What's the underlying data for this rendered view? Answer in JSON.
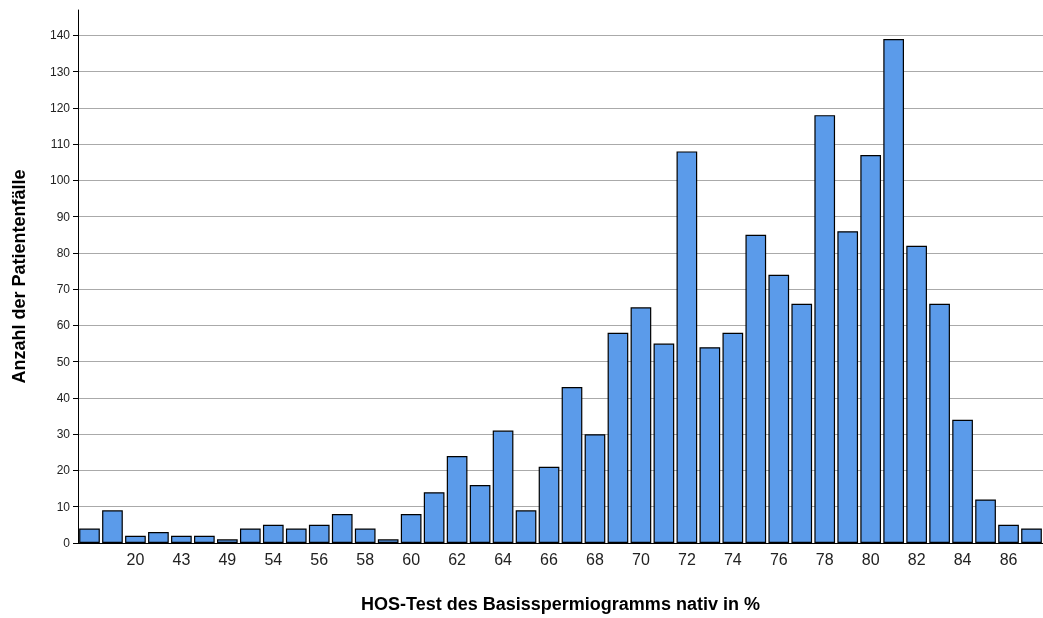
{
  "chart_data": {
    "type": "bar",
    "xlabel": "HOS-Test des Basisspermiogramms nativ in %",
    "ylabel": "Anzahl der Patientenfälle",
    "categories": [
      null,
      null,
      "20",
      null,
      "43",
      null,
      "49",
      null,
      "54",
      null,
      "56",
      null,
      "58",
      null,
      "60",
      null,
      "62",
      null,
      "64",
      null,
      "66",
      null,
      "68",
      null,
      "70",
      null,
      "72",
      null,
      "74",
      null,
      "76",
      null,
      "78",
      null,
      "80",
      null,
      "82",
      null,
      "84",
      null,
      "86",
      null
    ],
    "values": [
      4,
      9,
      2,
      3,
      2,
      2,
      1,
      4,
      5,
      4,
      5,
      8,
      4,
      1,
      8,
      14,
      24,
      16,
      31,
      9,
      21,
      43,
      30,
      58,
      65,
      55,
      108,
      54,
      58,
      85,
      74,
      66,
      118,
      86,
      107,
      139,
      82,
      66,
      34,
      12,
      5,
      4
    ],
    "color": "#5b9bea",
    "ylim": [
      0,
      147
    ],
    "yticks": [
      0,
      10,
      20,
      30,
      40,
      50,
      60,
      70,
      80,
      90,
      100,
      110,
      120,
      130,
      140
    ],
    "grid": "y"
  }
}
